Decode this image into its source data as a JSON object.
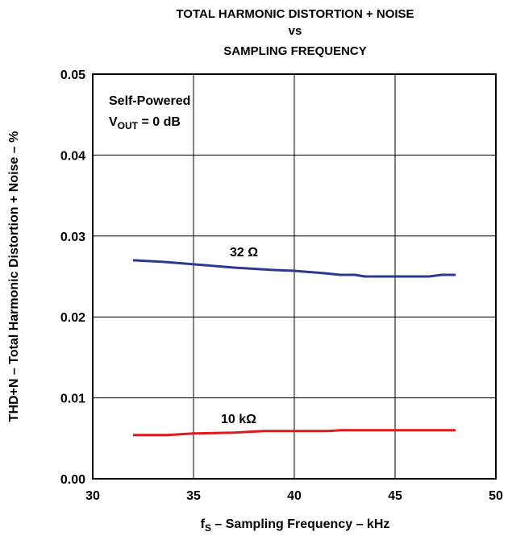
{
  "chart_data": {
    "type": "line",
    "title_lines": [
      "TOTAL HARMONIC DISTORTION + NOISE",
      "vs",
      "SAMPLING FREQUENCY"
    ],
    "xlabel_prefix": "f",
    "xlabel_sub": "S",
    "xlabel_rest": " – Sampling Frequency – kHz",
    "ylabel": "THD+N – Total Harmonic Distortion + Noise – %",
    "xlim": [
      30,
      50
    ],
    "ylim": [
      0.0,
      0.05
    ],
    "x_ticks": [
      "30",
      "35",
      "40",
      "45",
      "50"
    ],
    "y_ticks": [
      "0.00",
      "0.01",
      "0.02",
      "0.03",
      "0.04",
      "0.05"
    ],
    "grid": true,
    "annotation": {
      "line1": "Self-Powered",
      "line2_prefix": "V",
      "line2_sub": "OUT",
      "line2_rest": " = 0 dB"
    },
    "series": [
      {
        "name": "32 Ω",
        "color": "#2b3990",
        "x": [
          32,
          33.5,
          35,
          37,
          39,
          40,
          41.5,
          42.3,
          43,
          43.5,
          44,
          45,
          46,
          46.7,
          47.3,
          48
        ],
        "y": [
          0.027,
          0.0268,
          0.0265,
          0.0261,
          0.0258,
          0.0257,
          0.0254,
          0.0252,
          0.0252,
          0.025,
          0.025,
          0.025,
          0.025,
          0.025,
          0.0252,
          0.0252
        ]
      },
      {
        "name": "10 kΩ",
        "color": "#e0191f",
        "x": [
          32,
          33.7,
          35,
          37,
          38.5,
          40,
          41.7,
          42.3,
          44,
          46,
          48
        ],
        "y": [
          0.0054,
          0.0054,
          0.0056,
          0.0057,
          0.0059,
          0.0059,
          0.0059,
          0.006,
          0.006,
          0.006,
          0.006
        ]
      }
    ]
  }
}
